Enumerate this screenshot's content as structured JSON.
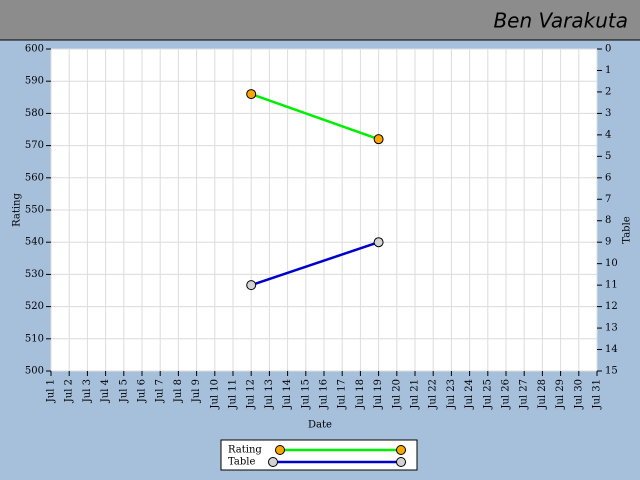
{
  "chart_data": {
    "type": "line",
    "title": "Ben Varakuta",
    "xlabel": "Date",
    "ylabel": "Rating",
    "y2label": "Table",
    "categories": [
      "Jul 1",
      "Jul 2",
      "Jul 3",
      "Jul 4",
      "Jul 5",
      "Jul 6",
      "Jul 7",
      "Jul 8",
      "Jul 9",
      "Jul 10",
      "Jul 11",
      "Jul 12",
      "Jul 13",
      "Jul 14",
      "Jul 15",
      "Jul 16",
      "Jul 17",
      "Jul 18",
      "Jul 19",
      "Jul 20",
      "Jul 21",
      "Jul 22",
      "Jul 23",
      "Jul 24",
      "Jul 25",
      "Jul 26",
      "Jul 27",
      "Jul 28",
      "Jul 29",
      "Jul 30",
      "Jul 31"
    ],
    "ylim": [
      500,
      600
    ],
    "yticks": [
      500,
      510,
      520,
      530,
      540,
      550,
      560,
      570,
      580,
      590,
      600
    ],
    "y2lim": [
      15,
      0
    ],
    "y2ticks": [
      0,
      1,
      2,
      3,
      4,
      5,
      6,
      7,
      8,
      9,
      10,
      11,
      12,
      13,
      14,
      15
    ],
    "grid": true,
    "series": [
      {
        "name": "Rating",
        "color": "#00ee00",
        "marker_color": "#ffa500",
        "x": [
          "Jul 12",
          "Jul 19"
        ],
        "values": [
          586,
          572
        ]
      },
      {
        "name": "Table",
        "color": "#0000cc",
        "marker_color": "#d3d3d3",
        "axis": "y2",
        "x": [
          "Jul 12",
          "Jul 19"
        ],
        "values": [
          11,
          9
        ]
      }
    ]
  }
}
